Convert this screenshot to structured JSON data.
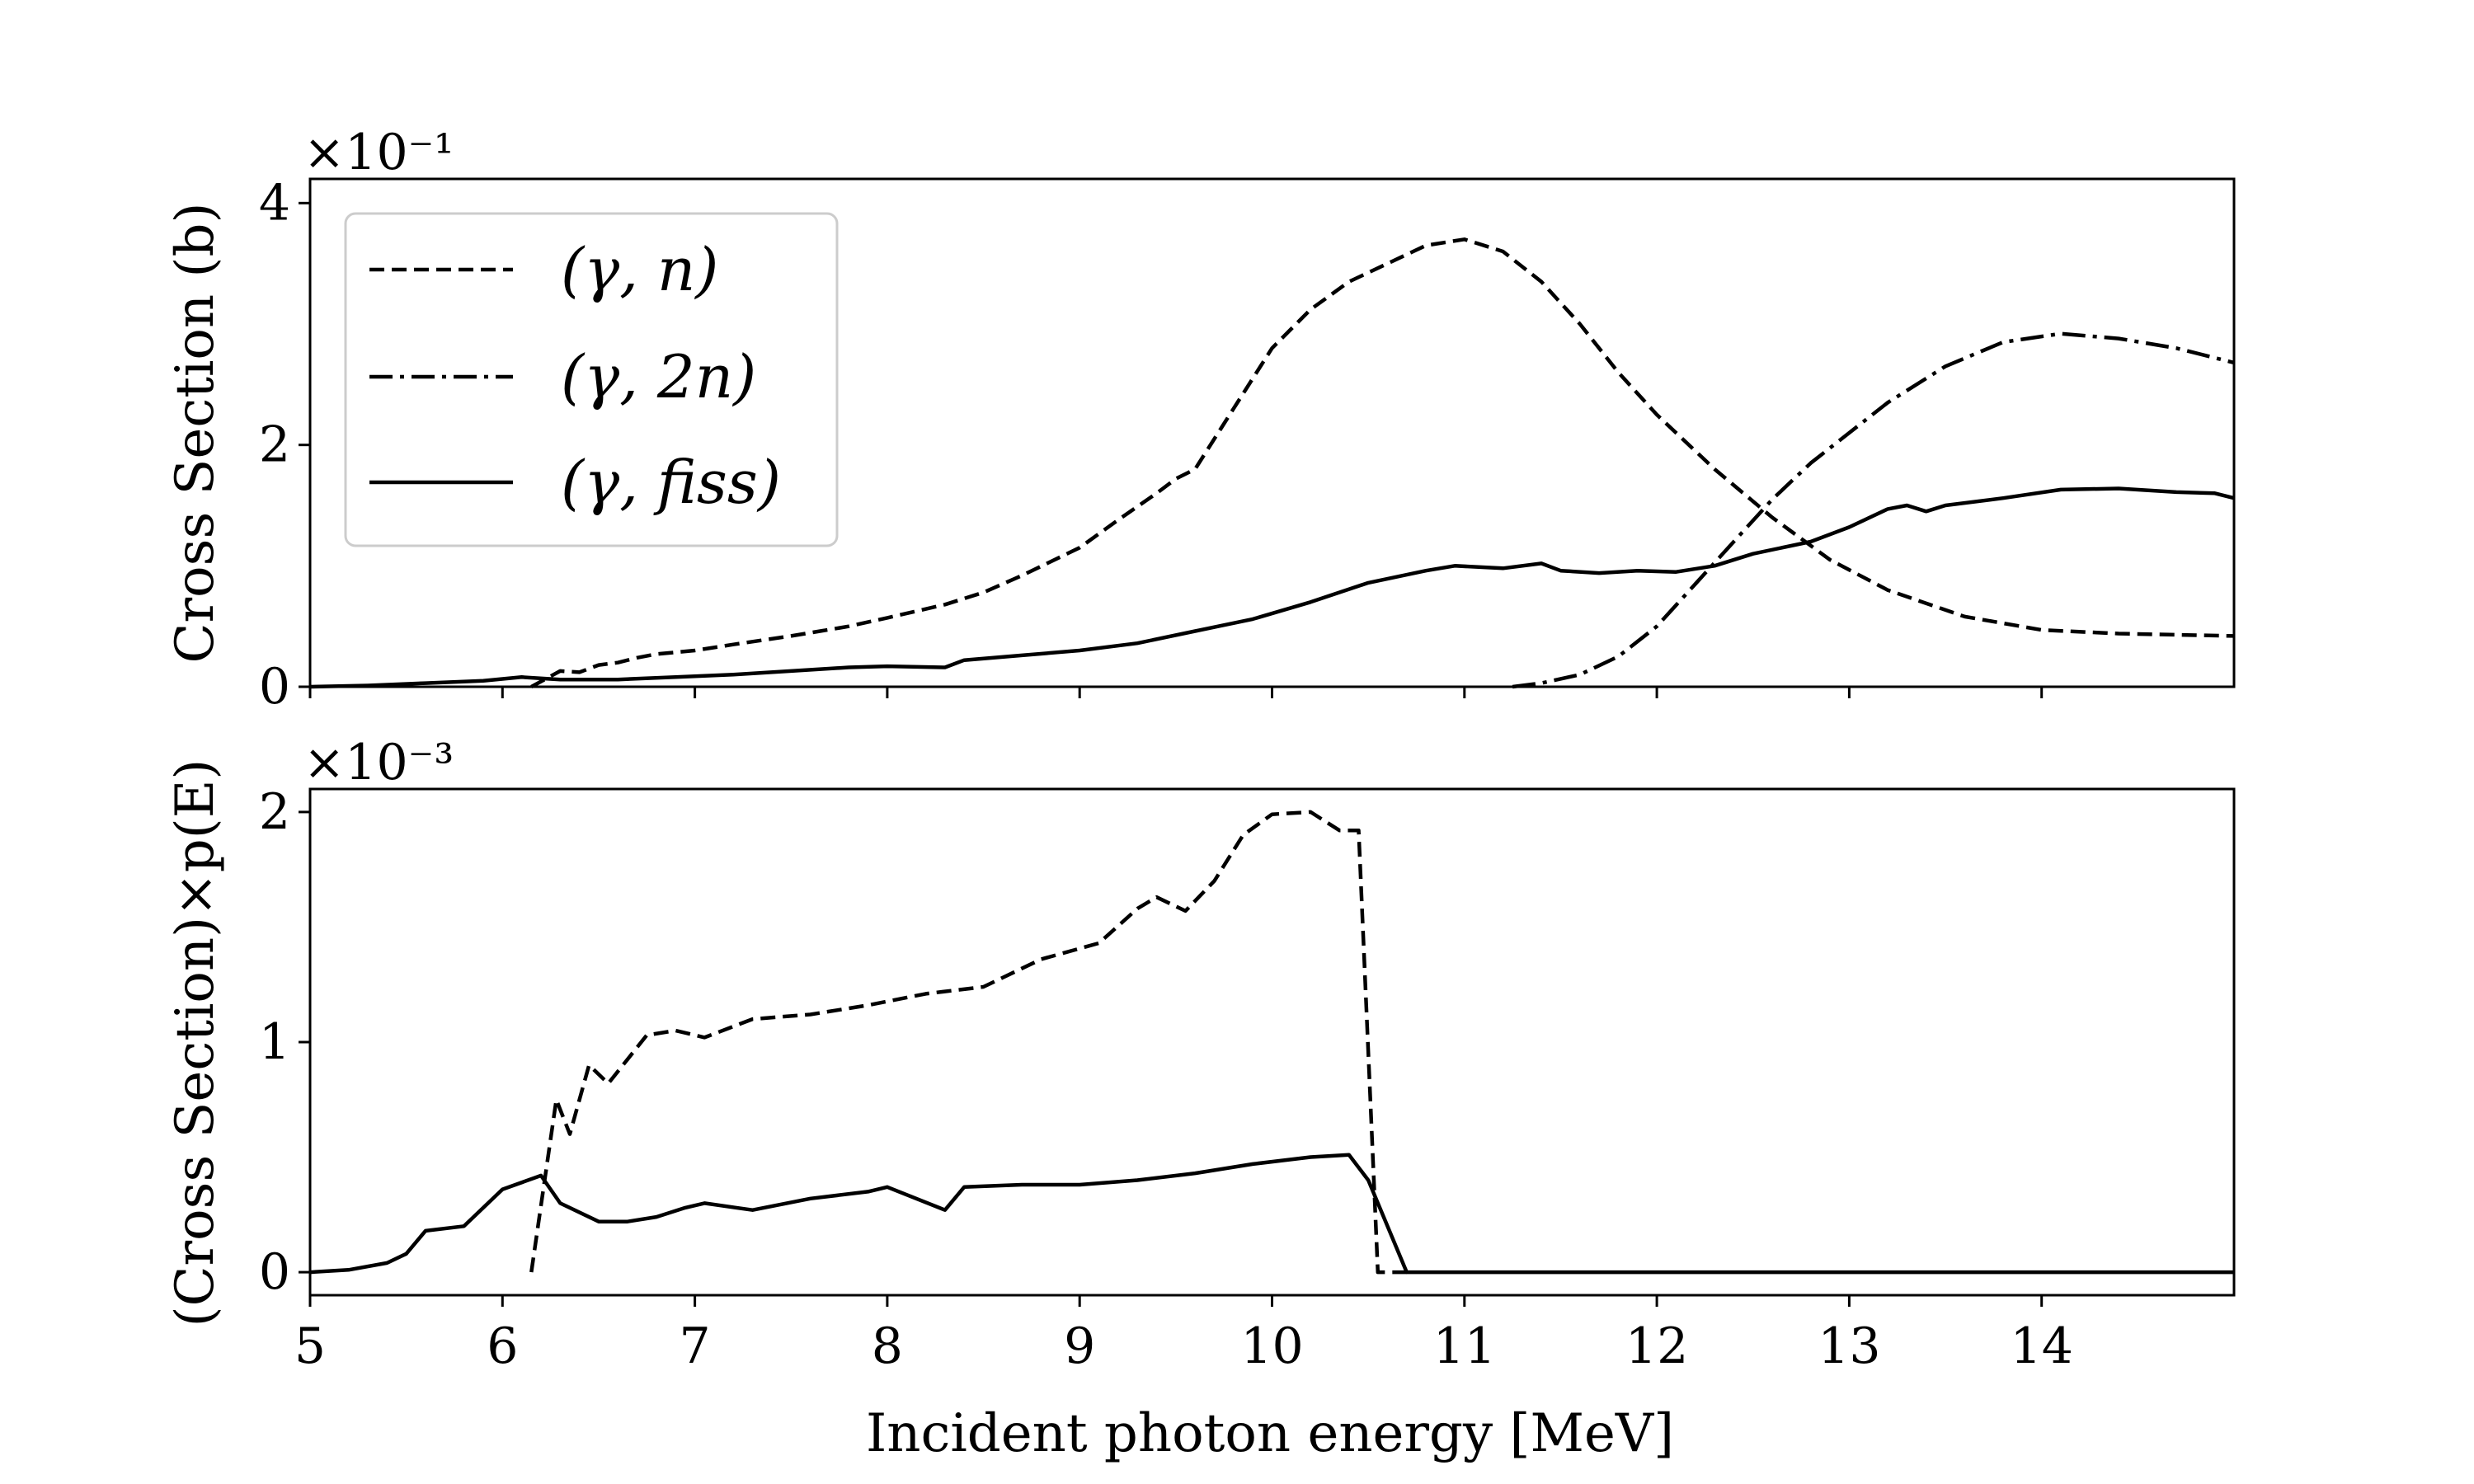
{
  "chart_data": [
    {
      "type": "line",
      "ylabel": "Cross Section (b)",
      "ymultiplier": "×10⁻¹",
      "xlim": [
        5,
        15
      ],
      "ylim": [
        0,
        4.2
      ],
      "xticks": [
        5,
        6,
        7,
        8,
        9,
        10,
        11,
        12,
        13,
        14
      ],
      "yticks": [
        0,
        2,
        4
      ],
      "ytick_labels": [
        "0",
        "2",
        "4"
      ],
      "legend": {
        "placement": "top-left"
      },
      "series": [
        {
          "name": "(γ, n)",
          "style": "dashed",
          "x": [
            6.15,
            6.3,
            6.4,
            6.5,
            6.6,
            6.7,
            6.8,
            7.0,
            7.2,
            7.5,
            7.8,
            8.0,
            8.3,
            8.5,
            8.7,
            9.0,
            9.2,
            9.4,
            9.5,
            9.6,
            9.8,
            10.0,
            10.2,
            10.4,
            10.6,
            10.8,
            11.0,
            11.2,
            11.4,
            11.6,
            11.8,
            12.0,
            12.3,
            12.6,
            12.9,
            13.2,
            13.6,
            14.0,
            14.4,
            15.0
          ],
          "y": [
            0.0,
            0.13,
            0.12,
            0.18,
            0.2,
            0.24,
            0.27,
            0.3,
            0.35,
            0.42,
            0.5,
            0.57,
            0.68,
            0.78,
            0.92,
            1.15,
            1.38,
            1.6,
            1.72,
            1.8,
            2.3,
            2.8,
            3.12,
            3.35,
            3.5,
            3.65,
            3.7,
            3.6,
            3.35,
            3.0,
            2.6,
            2.25,
            1.8,
            1.4,
            1.05,
            0.8,
            0.58,
            0.47,
            0.44,
            0.42
          ]
        },
        {
          "name": "(γ, 2n)",
          "style": "dashdot",
          "x": [
            11.25,
            11.4,
            11.6,
            11.8,
            12.0,
            12.2,
            12.4,
            12.6,
            12.8,
            13.0,
            13.2,
            13.5,
            13.8,
            14.1,
            14.4,
            14.7,
            15.0
          ],
          "y": [
            0.0,
            0.03,
            0.1,
            0.25,
            0.5,
            0.85,
            1.2,
            1.55,
            1.85,
            2.1,
            2.35,
            2.65,
            2.85,
            2.92,
            2.88,
            2.8,
            2.68
          ]
        },
        {
          "name": "(γ, fiss)",
          "style": "solid",
          "x": [
            5.0,
            5.3,
            5.6,
            5.9,
            6.1,
            6.3,
            6.6,
            6.9,
            7.2,
            7.5,
            7.8,
            8.0,
            8.3,
            8.4,
            8.7,
            9.0,
            9.3,
            9.6,
            9.9,
            10.2,
            10.5,
            10.8,
            10.95,
            11.2,
            11.4,
            11.5,
            11.7,
            11.9,
            12.1,
            12.3,
            12.5,
            12.8,
            13.0,
            13.2,
            13.3,
            13.4,
            13.5,
            13.8,
            14.1,
            14.4,
            14.7,
            14.9,
            15.0
          ],
          "y": [
            0.0,
            0.01,
            0.03,
            0.05,
            0.08,
            0.06,
            0.06,
            0.08,
            0.1,
            0.13,
            0.16,
            0.17,
            0.16,
            0.22,
            0.26,
            0.3,
            0.36,
            0.46,
            0.56,
            0.7,
            0.86,
            0.96,
            1.0,
            0.98,
            1.02,
            0.96,
            0.94,
            0.96,
            0.95,
            1.0,
            1.1,
            1.2,
            1.32,
            1.47,
            1.5,
            1.45,
            1.5,
            1.56,
            1.63,
            1.64,
            1.61,
            1.6,
            1.56
          ]
        }
      ]
    },
    {
      "type": "line",
      "xlabel": "Incident photon energy [MeV]",
      "ylabel": "(Cross Section)×p(E)",
      "ymultiplier": "×10⁻³",
      "xlim": [
        5,
        15
      ],
      "ylim": [
        -0.1,
        2.1
      ],
      "xticks": [
        5,
        6,
        7,
        8,
        9,
        10,
        11,
        12,
        13,
        14
      ],
      "xtick_labels": [
        "5",
        "6",
        "7",
        "8",
        "9",
        "10",
        "11",
        "12",
        "13",
        "14"
      ],
      "yticks": [
        0,
        1,
        2
      ],
      "ytick_labels": [
        "0",
        "1",
        "2"
      ],
      "series": [
        {
          "name": "(γ, n)",
          "style": "dashed",
          "x": [
            6.15,
            6.28,
            6.35,
            6.45,
            6.55,
            6.75,
            6.9,
            7.05,
            7.3,
            7.6,
            7.9,
            8.2,
            8.5,
            8.8,
            9.1,
            9.3,
            9.4,
            9.55,
            9.7,
            9.85,
            10.0,
            10.2,
            10.35,
            10.45,
            10.55,
            10.6,
            10.7
          ],
          "y": [
            0.0,
            0.75,
            0.6,
            0.9,
            0.82,
            1.03,
            1.05,
            1.02,
            1.1,
            1.12,
            1.16,
            1.21,
            1.24,
            1.36,
            1.43,
            1.58,
            1.63,
            1.57,
            1.7,
            1.9,
            1.99,
            2.0,
            1.92,
            1.92,
            0.0,
            0.0,
            0.0
          ]
        },
        {
          "name": "(γ, fiss)",
          "style": "solid",
          "x": [
            5.0,
            5.2,
            5.4,
            5.5,
            5.6,
            5.8,
            6.0,
            6.2,
            6.3,
            6.5,
            6.65,
            6.8,
            6.95,
            7.05,
            7.3,
            7.6,
            7.9,
            8.0,
            8.3,
            8.4,
            8.7,
            9.0,
            9.3,
            9.6,
            9.9,
            10.2,
            10.4,
            10.5,
            10.6,
            10.7,
            15.0
          ],
          "y": [
            0.0,
            0.01,
            0.04,
            0.08,
            0.18,
            0.2,
            0.36,
            0.42,
            0.3,
            0.22,
            0.22,
            0.24,
            0.28,
            0.3,
            0.27,
            0.32,
            0.35,
            0.37,
            0.27,
            0.37,
            0.38,
            0.38,
            0.4,
            0.43,
            0.47,
            0.5,
            0.51,
            0.4,
            0.2,
            0.0,
            0.0
          ]
        }
      ]
    }
  ]
}
